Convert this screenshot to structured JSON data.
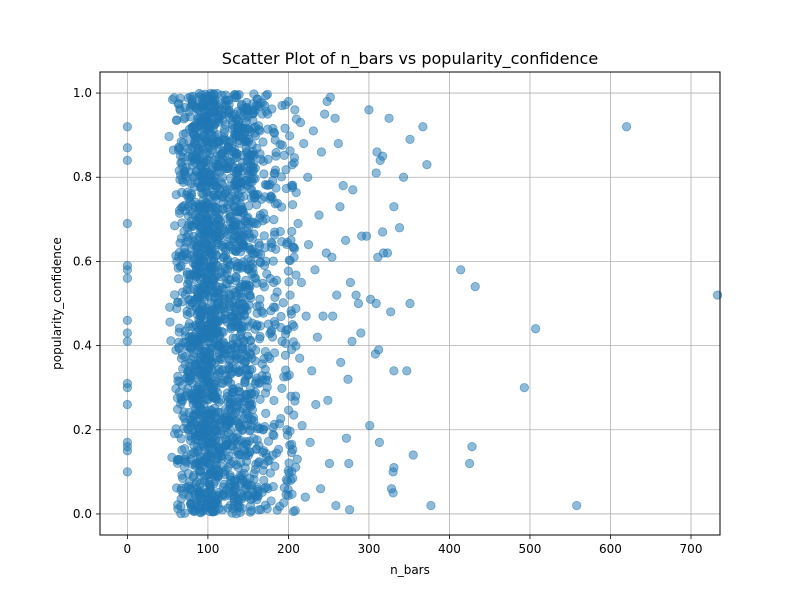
{
  "chart_data": {
    "type": "scatter",
    "title": "Scatter Plot of n_bars vs popularity_confidence",
    "xlabel": "n_bars",
    "ylabel": "popularity_confidence",
    "xlim": [
      -34,
      736
    ],
    "ylim": [
      -0.05,
      1.05
    ],
    "xticks": [
      0,
      100,
      200,
      300,
      400,
      500,
      600,
      700
    ],
    "yticks": [
      0.0,
      0.2,
      0.4,
      0.6,
      0.8,
      1.0
    ],
    "xtick_labels": [
      "0",
      "100",
      "200",
      "300",
      "400",
      "500",
      "600",
      "700"
    ],
    "ytick_labels": [
      "0.0",
      "0.2",
      "0.4",
      "0.6",
      "0.8",
      "1.0"
    ],
    "grid": true,
    "legend": "none",
    "point_color": "#1f77b4",
    "point_alpha": 0.5,
    "points": [
      [
        0,
        0.92
      ],
      [
        0,
        0.87
      ],
      [
        0,
        0.84
      ],
      [
        0,
        0.69
      ],
      [
        0,
        0.59
      ],
      [
        0,
        0.58
      ],
      [
        0,
        0.56
      ],
      [
        0,
        0.46
      ],
      [
        0,
        0.43
      ],
      [
        0,
        0.41
      ],
      [
        0,
        0.31
      ],
      [
        0,
        0.3
      ],
      [
        0,
        0.26
      ],
      [
        0,
        0.17
      ],
      [
        0,
        0.16
      ],
      [
        0,
        0.15
      ],
      [
        0,
        0.1
      ],
      [
        620,
        0.92
      ],
      [
        733,
        0.52
      ],
      [
        558,
        0.02
      ],
      [
        507,
        0.44
      ],
      [
        493,
        0.3
      ],
      [
        432,
        0.54
      ],
      [
        428,
        0.16
      ],
      [
        425,
        0.12
      ],
      [
        414,
        0.58
      ],
      [
        377,
        0.02
      ],
      [
        372,
        0.83
      ],
      [
        367,
        0.92
      ],
      [
        355,
        0.14
      ],
      [
        351,
        0.89
      ],
      [
        351,
        0.5
      ],
      [
        347,
        0.34
      ],
      [
        343,
        0.8
      ],
      [
        338,
        0.68
      ],
      [
        331,
        0.73
      ],
      [
        331,
        0.34
      ],
      [
        331,
        0.11
      ],
      [
        330,
        0.1
      ],
      [
        330,
        0.05
      ],
      [
        328,
        0.06
      ],
      [
        327,
        0.48
      ],
      [
        325,
        0.94
      ],
      [
        323,
        0.62
      ],
      [
        318,
        0.62
      ],
      [
        317,
        0.85
      ],
      [
        317,
        0.67
      ],
      [
        314,
        0.84
      ],
      [
        313,
        0.17
      ],
      [
        312,
        0.39
      ],
      [
        311,
        0.61
      ],
      [
        310,
        0.86
      ],
      [
        309,
        0.81
      ],
      [
        309,
        0.5
      ],
      [
        308,
        0.38
      ],
      [
        302,
        0.51
      ],
      [
        301,
        0.21
      ],
      [
        300,
        0.96
      ],
      [
        297,
        0.66
      ],
      [
        291,
        0.66
      ],
      [
        290,
        0.43
      ],
      [
        287,
        0.5
      ],
      [
        284,
        0.52
      ],
      [
        280,
        0.77
      ],
      [
        279,
        0.41
      ],
      [
        277,
        0.55
      ],
      [
        276,
        0.01
      ],
      [
        275,
        0.12
      ],
      [
        274,
        0.32
      ],
      [
        272,
        0.18
      ],
      [
        271,
        0.65
      ],
      [
        268,
        0.78
      ],
      [
        265,
        0.36
      ],
      [
        264,
        0.73
      ],
      [
        262,
        0.88
      ],
      [
        260,
        0.52
      ],
      [
        259,
        0.02
      ],
      [
        258,
        0.94
      ],
      [
        255,
        0.47
      ],
      [
        254,
        0.61
      ],
      [
        252,
        0.99
      ],
      [
        251,
        0.12
      ],
      [
        249,
        0.27
      ],
      [
        248,
        0.98
      ],
      [
        247,
        0.62
      ],
      [
        245,
        0.95
      ],
      [
        243,
        0.47
      ],
      [
        241,
        0.86
      ],
      [
        240,
        0.06
      ],
      [
        238,
        0.71
      ],
      [
        236,
        0.42
      ],
      [
        234,
        0.26
      ],
      [
        233,
        0.58
      ],
      [
        231,
        0.91
      ],
      [
        229,
        0.34
      ],
      [
        227,
        0.17
      ],
      [
        225,
        0.64
      ],
      [
        224,
        0.8
      ],
      [
        222,
        0.47
      ],
      [
        221,
        0.04
      ],
      [
        219,
        0.88
      ],
      [
        217,
        0.21
      ],
      [
        216,
        0.55
      ],
      [
        215,
        0.93
      ],
      [
        214,
        0.37
      ],
      [
        212,
        0.69
      ],
      [
        211,
        0.13
      ],
      [
        209,
        0.28
      ],
      [
        208,
        0.96
      ],
      [
        207,
        0.61
      ],
      [
        205,
        0.45
      ],
      [
        204,
        0.78
      ],
      [
        203,
        0.08
      ],
      [
        202,
        0.52
      ],
      [
        201,
        0.33
      ],
      [
        200,
        0.98
      ]
    ]
  }
}
